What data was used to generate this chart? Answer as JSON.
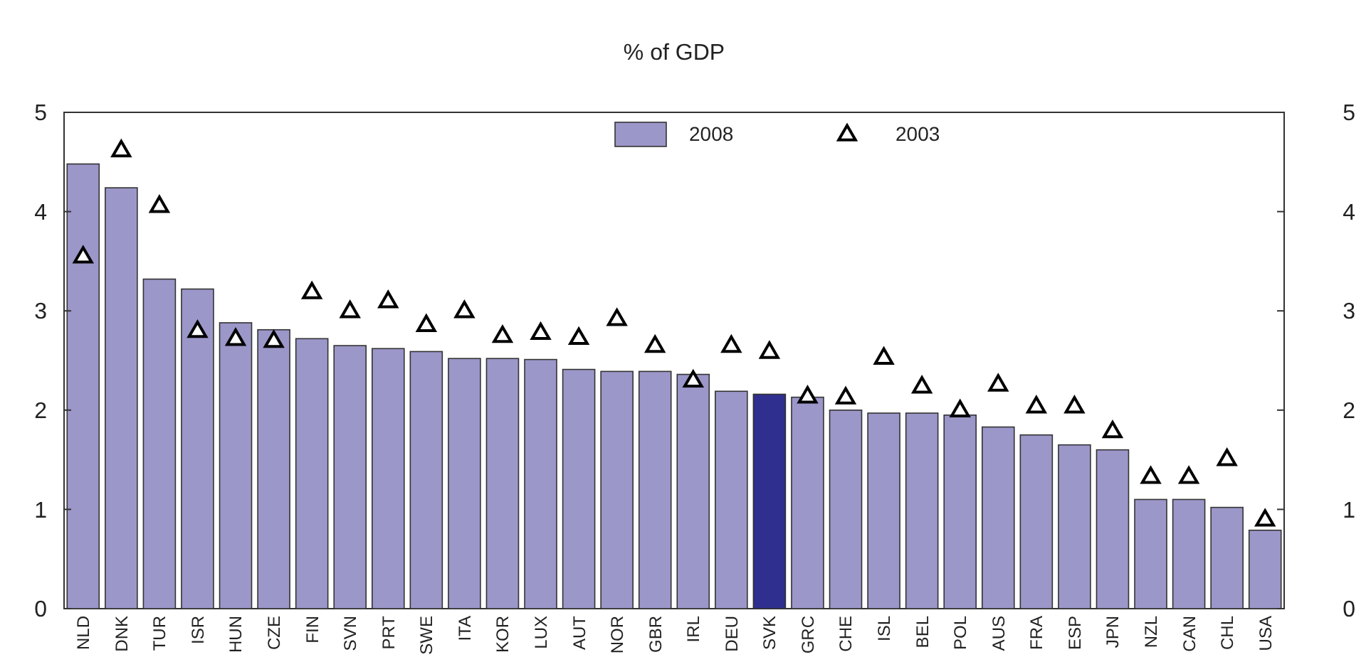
{
  "chart_data": {
    "type": "bar",
    "title": "% of GDP",
    "categories": [
      "NLD",
      "DNK",
      "TUR",
      "ISR",
      "HUN",
      "CZE",
      "FIN",
      "SVN",
      "PRT",
      "SWE",
      "ITA",
      "KOR",
      "LUX",
      "AUT",
      "NOR",
      "GBR",
      "IRL",
      "DEU",
      "SVK",
      "GRC",
      "CHE",
      "ISL",
      "BEL",
      "POL",
      "AUS",
      "FRA",
      "ESP",
      "JPN",
      "NZL",
      "CAN",
      "CHL",
      "USA"
    ],
    "series": [
      {
        "name": "2008",
        "color": "#9b97c9",
        "colors": [
          "#9b97c9",
          "#9b97c9",
          "#9b97c9",
          "#9b97c9",
          "#9b97c9",
          "#9b97c9",
          "#9b97c9",
          "#9b97c9",
          "#9b97c9",
          "#9b97c9",
          "#9b97c9",
          "#9b97c9",
          "#9b97c9",
          "#9b97c9",
          "#9b97c9",
          "#9b97c9",
          "#9b97c9",
          "#9b97c9",
          "#2e2f8e",
          "#9b97c9",
          "#9b97c9",
          "#9b97c9",
          "#9b97c9",
          "#9b97c9",
          "#9b97c9",
          "#9b97c9",
          "#9b97c9",
          "#9b97c9",
          "#9b97c9",
          "#9b97c9",
          "#9b97c9",
          "#9b97c9"
        ],
        "values": [
          4.48,
          4.24,
          3.32,
          3.22,
          2.88,
          2.81,
          2.72,
          2.65,
          2.62,
          2.59,
          2.52,
          2.52,
          2.51,
          2.41,
          2.39,
          2.39,
          2.36,
          2.19,
          2.16,
          2.13,
          2.0,
          1.97,
          1.97,
          1.95,
          1.83,
          1.75,
          1.65,
          1.6,
          1.1,
          1.1,
          1.02,
          0.79
        ]
      },
      {
        "name": "2003",
        "type": "scatter",
        "marker": "triangle",
        "color": "#000000",
        "values": [
          3.54,
          4.61,
          4.05,
          2.79,
          2.71,
          2.69,
          3.18,
          2.99,
          3.09,
          2.85,
          2.99,
          2.74,
          2.77,
          2.72,
          2.91,
          2.64,
          2.29,
          2.64,
          2.58,
          2.13,
          2.12,
          2.52,
          2.23,
          1.99,
          2.25,
          2.03,
          2.03,
          1.78,
          1.32,
          1.32,
          1.5,
          0.89
        ]
      }
    ],
    "ylim": [
      0,
      5
    ],
    "yticks": [
      0,
      1,
      2,
      3,
      4,
      5
    ],
    "y2lim": [
      0,
      5
    ],
    "y2ticks": [
      0,
      1,
      2,
      3,
      4,
      5
    ],
    "legend": "top"
  }
}
